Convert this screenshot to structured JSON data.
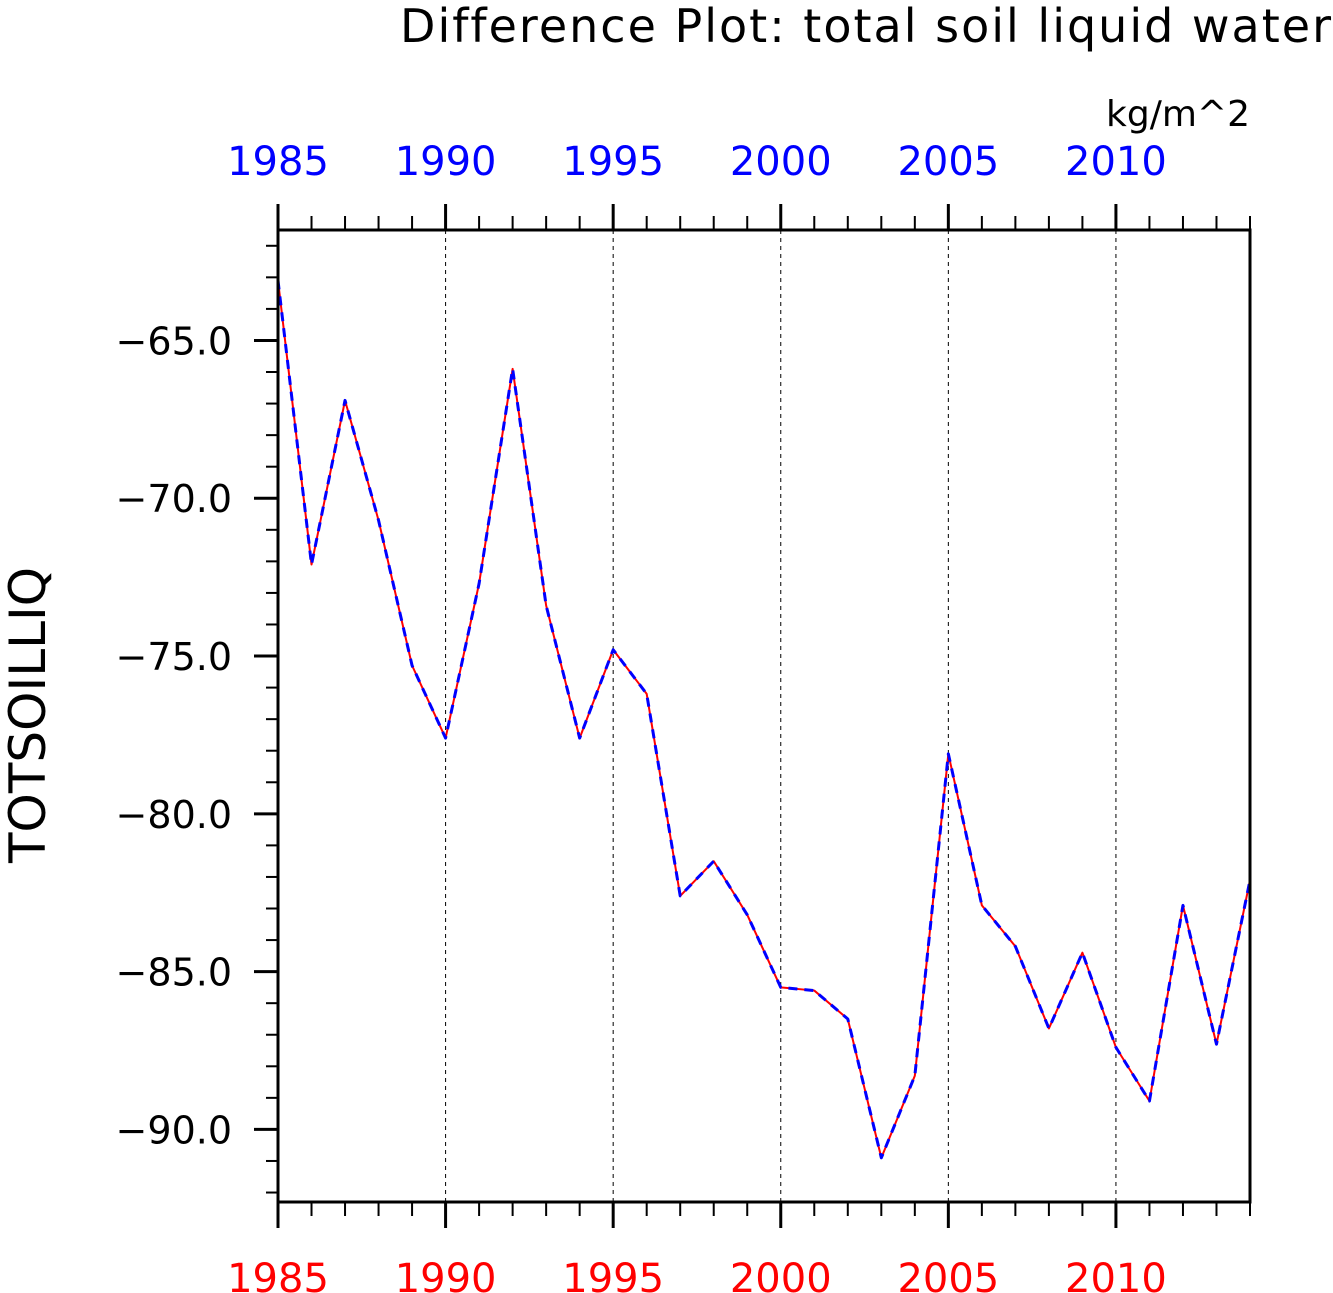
{
  "chart_data": {
    "type": "line",
    "title": "Difference Plot: total soil liquid water",
    "units": "kg/m^2",
    "ylabel": "TOTSOILLIQ",
    "xlim": [
      1985,
      2014
    ],
    "ylim": [
      -92.3,
      -61.5
    ],
    "x_ticks": [
      "1985",
      "1990",
      "1995",
      "2000",
      "2005",
      "2010"
    ],
    "y_ticks": [
      "-65.0",
      "-70.0",
      "-75.0",
      "-80.0",
      "-85.0",
      "-90.0"
    ],
    "grid": "vertical dashed at major x ticks",
    "colors": {
      "top_axis_labels": "#0000ff",
      "bottom_axis_labels": "#ff0000",
      "series_a": "#ff0000",
      "series_b": "#0000ff"
    },
    "x": [
      1985,
      1986,
      1987,
      1988,
      1989,
      1990,
      1991,
      1992,
      1993,
      1994,
      1995,
      1996,
      1997,
      1998,
      1999,
      2000,
      2001,
      2002,
      2003,
      2004,
      2005,
      2006,
      2007,
      2008,
      2009,
      2010,
      2011,
      2012,
      2013,
      2014
    ],
    "series": [
      {
        "style": "solid",
        "values": [
          -63.1,
          -72.1,
          -66.9,
          -70.7,
          -75.3,
          -77.6,
          -72.7,
          -65.9,
          -73.4,
          -77.6,
          -74.8,
          -76.2,
          -82.6,
          -81.5,
          -83.2,
          -85.5,
          -85.6,
          -86.5,
          -90.9,
          -88.3,
          -78.1,
          -82.9,
          -84.2,
          -86.8,
          -84.4,
          -87.4,
          -89.1,
          -82.9,
          -87.3,
          -82.1
        ]
      },
      {
        "style": "dashed",
        "values": [
          -63.1,
          -72.1,
          -66.9,
          -70.7,
          -75.3,
          -77.6,
          -72.7,
          -65.9,
          -73.4,
          -77.6,
          -74.8,
          -76.2,
          -82.6,
          -81.5,
          -83.2,
          -85.5,
          -85.6,
          -86.5,
          -90.9,
          -88.3,
          -78.1,
          -82.9,
          -84.2,
          -86.8,
          -84.4,
          -87.4,
          -89.1,
          -82.9,
          -87.3,
          -82.1
        ]
      }
    ]
  }
}
